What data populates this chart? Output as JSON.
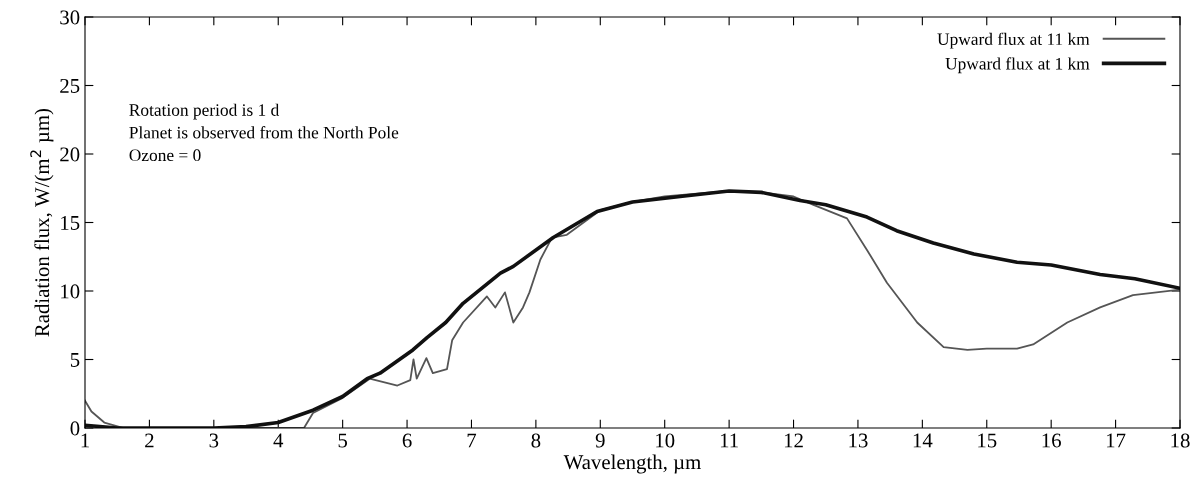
{
  "chart_data": {
    "type": "line",
    "xlabel": "Wavelength, µm",
    "ylabel": "Radiation flux, W/(m$^{2}$ µm)",
    "xlim": [
      1,
      18
    ],
    "ylim": [
      0,
      30
    ],
    "xticks": [
      1,
      2,
      3,
      4,
      5,
      6,
      7,
      8,
      9,
      10,
      11,
      12,
      13,
      14,
      15,
      16,
      17,
      18
    ],
    "yticks": [
      0,
      5,
      10,
      15,
      20,
      25,
      30
    ],
    "grid": false,
    "legend": "top right",
    "marker": "none",
    "line_style": "solid",
    "annotations": [
      "Rotation period is 1 d",
      "Planet is observed from the North Pole",
      "Ozone = 0"
    ],
    "series": [
      {
        "name": "Upward flux at 11 km",
        "color": "#555555",
        "x": [
          1,
          1.1,
          1.3,
          1.6,
          2,
          3,
          4,
          4.2,
          4.4,
          4.54,
          5,
          5.42,
          5.85,
          6.05,
          6.1,
          6.15,
          6.3,
          6.4,
          6.62,
          6.7,
          6.87,
          7.24,
          7.37,
          7.52,
          7.65,
          7.8,
          7.9,
          8.07,
          8.25,
          8.48,
          8.74,
          9,
          9.5,
          10,
          10.5,
          11,
          11.5,
          12,
          12.3,
          12.83,
          13.14,
          13.45,
          13.92,
          14.33,
          14.7,
          15,
          15.47,
          15.72,
          16.25,
          16.76,
          17.27,
          18
        ],
        "values": [
          2.0,
          1.2,
          0.4,
          0,
          0,
          0,
          0,
          0,
          0,
          1.1,
          2.2,
          3.6,
          3.1,
          3.5,
          5.0,
          3.6,
          5.1,
          4.0,
          4.3,
          6.4,
          7.7,
          9.6,
          8.8,
          9.9,
          7.7,
          8.8,
          9.9,
          12.3,
          13.9,
          14.1,
          15.0,
          15.9,
          16.5,
          16.9,
          17.1,
          17.3,
          17.2,
          16.9,
          16.3,
          15.3,
          13.0,
          10.6,
          7.7,
          5.9,
          5.7,
          5.8,
          5.8,
          6.1,
          7.7,
          8.8,
          9.7,
          10.1
        ]
      },
      {
        "name": "Upward flux at 1 km",
        "color": "#111111",
        "x": [
          1,
          1.5,
          2,
          3,
          3.5,
          4,
          4.54,
          5,
          5.38,
          5.58,
          6.09,
          6.31,
          6.6,
          6.87,
          7.45,
          7.65,
          8.27,
          8.95,
          9.5,
          10.24,
          11,
          11.5,
          12.1,
          12.5,
          13.14,
          13.6,
          14.17,
          14.8,
          15.47,
          16,
          16.76,
          17.3,
          18
        ],
        "values": [
          0.2,
          0,
          0,
          0,
          0.1,
          0.4,
          1.3,
          2.3,
          3.6,
          4.0,
          5.7,
          6.6,
          7.7,
          9.1,
          11.3,
          11.8,
          13.9,
          15.8,
          16.5,
          16.9,
          17.3,
          17.2,
          16.6,
          16.3,
          15.4,
          14.4,
          13.5,
          12.7,
          12.1,
          11.9,
          11.2,
          10.9,
          10.2
        ]
      }
    ]
  }
}
